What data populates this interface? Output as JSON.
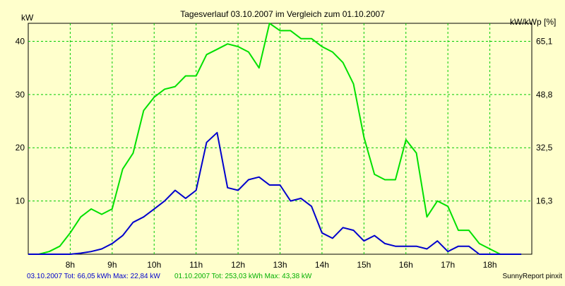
{
  "chart_data": {
    "type": "line",
    "title": "Tagesverlauf 03.10.2007 im Vergleich zum 01.10.2007",
    "ylabel_left": "kW",
    "ylabel_right": "kW/kWp [%]",
    "x_ticks": [
      "8h",
      "9h",
      "10h",
      "11h",
      "12h",
      "13h",
      "14h",
      "15h",
      "16h",
      "17h",
      "18h"
    ],
    "y_ticks_left": [
      10,
      20,
      30,
      40
    ],
    "y_ticks_right": [
      "16,3",
      "32,5",
      "48,8",
      "65,1"
    ],
    "xlim": [
      7.0,
      19.0
    ],
    "ylim": [
      0,
      43.38
    ],
    "grid": true,
    "series": [
      {
        "name": "01.10.2007",
        "color": "#00e000",
        "x": [
          7.0,
          7.25,
          7.5,
          7.75,
          8.0,
          8.25,
          8.5,
          8.75,
          9.0,
          9.25,
          9.5,
          9.75,
          10.0,
          10.25,
          10.5,
          10.75,
          11.0,
          11.25,
          11.5,
          11.75,
          12.0,
          12.25,
          12.5,
          12.75,
          13.0,
          13.25,
          13.5,
          13.75,
          14.0,
          14.25,
          14.5,
          14.75,
          15.0,
          15.25,
          15.5,
          15.75,
          16.0,
          16.25,
          16.5,
          16.75,
          17.0,
          17.25,
          17.5,
          17.75,
          18.0,
          18.25,
          18.5,
          18.75
        ],
        "y": [
          0.0,
          0.0,
          0.5,
          1.5,
          4.0,
          7.0,
          8.5,
          7.5,
          8.5,
          16.0,
          19.0,
          27.0,
          29.5,
          31.0,
          31.5,
          33.5,
          33.5,
          37.5,
          38.5,
          39.5,
          39.0,
          38.0,
          35.0,
          43.38,
          42.0,
          42.0,
          40.5,
          40.5,
          39.0,
          38.0,
          36.0,
          32.0,
          22.0,
          15.0,
          14.0,
          14.0,
          21.5,
          19.0,
          7.0,
          10.0,
          9.0,
          4.5,
          4.5,
          2.0,
          1.0,
          0.0,
          0.0,
          0.0
        ]
      },
      {
        "name": "03.10.2007",
        "color": "#0000cc",
        "x": [
          7.0,
          7.25,
          7.5,
          7.75,
          8.0,
          8.25,
          8.5,
          8.75,
          9.0,
          9.25,
          9.5,
          9.75,
          10.0,
          10.25,
          10.5,
          10.75,
          11.0,
          11.25,
          11.5,
          11.75,
          12.0,
          12.25,
          12.5,
          12.75,
          13.0,
          13.25,
          13.5,
          13.75,
          14.0,
          14.25,
          14.5,
          14.75,
          15.0,
          15.25,
          15.5,
          15.75,
          16.0,
          16.25,
          16.5,
          16.75,
          17.0,
          17.25,
          17.5,
          17.75,
          18.0,
          18.25,
          18.5,
          18.75
        ],
        "y": [
          0.0,
          0.0,
          0.0,
          0.0,
          0.0,
          0.2,
          0.5,
          1.0,
          2.0,
          3.5,
          6.0,
          7.0,
          8.5,
          10.0,
          12.0,
          10.5,
          12.0,
          21.0,
          22.84,
          12.5,
          12.0,
          14.0,
          14.5,
          13.0,
          13.0,
          10.0,
          10.5,
          9.0,
          4.0,
          3.0,
          5.0,
          4.5,
          2.5,
          3.5,
          2.0,
          1.5,
          1.5,
          1.5,
          1.0,
          2.5,
          0.5,
          1.5,
          1.5,
          0.0,
          0.0,
          0.0,
          0.0,
          0.0
        ]
      }
    ]
  },
  "footer": {
    "series_a": "03.10.2007 Tot: 66,05 kWh Max: 22,84 kW",
    "series_b": "01.10.2007 Tot: 253,03 kWh Max: 43,38 kW",
    "brand": "SunnyReport pinxit"
  }
}
